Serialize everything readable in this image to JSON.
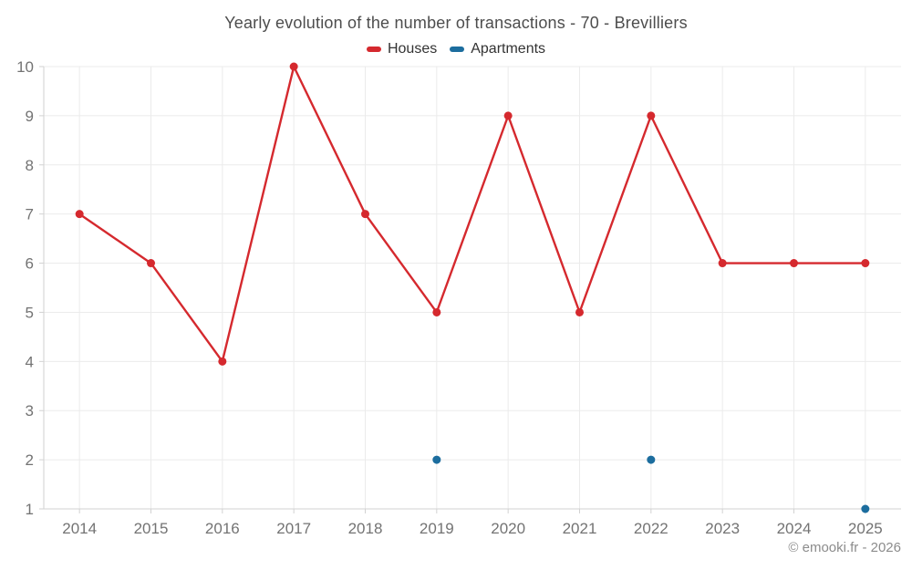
{
  "chart_data": {
    "type": "line",
    "title": "Yearly evolution of the number of transactions - 70 - Brevilliers",
    "categories": [
      "2014",
      "2015",
      "2016",
      "2017",
      "2018",
      "2019",
      "2020",
      "2021",
      "2022",
      "2023",
      "2024",
      "2025"
    ],
    "series": [
      {
        "name": "Houses",
        "color": "#d5292e",
        "values": [
          7,
          6,
          4,
          10,
          7,
          5,
          9,
          5,
          9,
          6,
          6,
          6
        ]
      },
      {
        "name": "Apartments",
        "color": "#1c6d9e",
        "values": [
          null,
          null,
          null,
          null,
          null,
          2,
          null,
          null,
          2,
          null,
          null,
          1
        ]
      }
    ],
    "xlabel": "",
    "ylabel": "",
    "ylim": [
      1,
      10
    ],
    "yticks": [
      1,
      2,
      3,
      4,
      5,
      6,
      7,
      8,
      9,
      10
    ],
    "grid": true,
    "legend_position": "top",
    "marker_radius": 4.5,
    "line_width": 2.4,
    "copyright": "© emooki.fr - 2026"
  },
  "colors": {
    "grid": "#ebebeb",
    "axis": "#d2d2d2",
    "tick_label": "#737373",
    "title": "#4d4d4d",
    "legend_text": "#333333",
    "copyright": "#8c8c8c",
    "background": "#ffffff"
  }
}
